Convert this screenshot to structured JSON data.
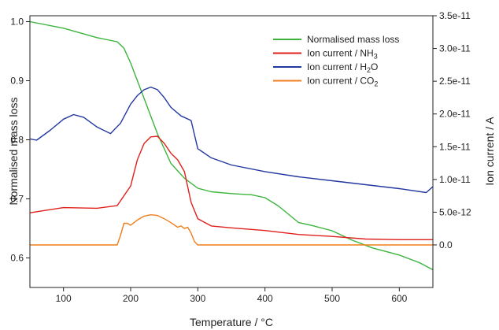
{
  "chart_data": {
    "type": "line",
    "xlabel": "Temperature / °C",
    "ylabel_left": "Normalised mass loss",
    "ylabel_right": "Ion current / A",
    "xlim": [
      50,
      650
    ],
    "ylim_left": [
      0.55,
      1.01
    ],
    "ylim_right": [
      -6.5e-12,
      3.5e-11
    ],
    "x_ticks": [
      100,
      200,
      300,
      400,
      500,
      600
    ],
    "y_ticks_left": [
      0.6,
      0.7,
      0.8,
      0.9,
      1.0
    ],
    "y_ticks_right": [
      {
        "value": 0,
        "label": "0.0"
      },
      {
        "value": 5e-12,
        "label": "5.0e-12"
      },
      {
        "value": 1e-11,
        "label": "1.0e-11"
      },
      {
        "value": 1.5e-11,
        "label": "1.5e-11"
      },
      {
        "value": 2e-11,
        "label": "2.0e-11"
      },
      {
        "value": 2.5e-11,
        "label": "2.5e-11"
      },
      {
        "value": 3e-11,
        "label": "3.0e-11"
      },
      {
        "value": 3.5e-11,
        "label": "3.5e-11"
      }
    ],
    "legend_position": "top-right",
    "series": [
      {
        "name": "Normalised mass loss",
        "color": "#3cb43c",
        "axis": "left",
        "x": [
          50,
          100,
          150,
          180,
          190,
          200,
          220,
          240,
          260,
          280,
          300,
          320,
          350,
          380,
          400,
          420,
          450,
          470,
          500,
          530,
          560,
          600,
          630,
          650
        ],
        "y": [
          1.0,
          0.989,
          0.973,
          0.966,
          0.955,
          0.93,
          0.87,
          0.81,
          0.76,
          0.735,
          0.718,
          0.712,
          0.709,
          0.707,
          0.702,
          0.688,
          0.66,
          0.655,
          0.646,
          0.63,
          0.617,
          0.605,
          0.592,
          0.58
        ]
      },
      {
        "name": "Ion current / NH3",
        "color": "#e0201c",
        "axis": "right",
        "x": [
          50,
          100,
          150,
          180,
          200,
          210,
          220,
          230,
          240,
          250,
          260,
          270,
          280,
          290,
          300,
          320,
          350,
          400,
          450,
          500,
          550,
          600,
          650
        ],
        "y": [
          4.9e-12,
          5.7e-12,
          5.6e-12,
          6e-12,
          9e-12,
          1.3e-11,
          1.55e-11,
          1.65e-11,
          1.66e-11,
          1.55e-11,
          1.4e-11,
          1.3e-11,
          1.12e-11,
          6.5e-12,
          4e-12,
          2.9e-12,
          2.6e-12,
          2.2e-12,
          1.6e-12,
          1.3e-12,
          9e-13,
          8e-13,
          8e-13
        ]
      },
      {
        "name": "Ion current / H2O",
        "color": "#2238a0",
        "axis": "right",
        "x": [
          50,
          60,
          80,
          100,
          115,
          130,
          150,
          170,
          185,
          200,
          210,
          220,
          230,
          240,
          250,
          260,
          275,
          290,
          300,
          320,
          350,
          400,
          450,
          500,
          550,
          600,
          640,
          650
        ],
        "y": [
          1.62e-11,
          1.6e-11,
          1.75e-11,
          1.92e-11,
          1.99e-11,
          1.95e-11,
          1.8e-11,
          1.7e-11,
          1.86e-11,
          2.15e-11,
          2.28e-11,
          2.37e-11,
          2.41e-11,
          2.37e-11,
          2.25e-11,
          2.1e-11,
          1.97e-11,
          1.9e-11,
          1.47e-11,
          1.33e-11,
          1.22e-11,
          1.12e-11,
          1.04e-11,
          9.8e-12,
          9.2e-12,
          8.6e-12,
          8e-12,
          8.9e-12
        ]
      },
      {
        "name": "Ion current / CO2",
        "color": "#f07e1c",
        "axis": "right",
        "x": [
          50,
          180,
          185,
          190,
          195,
          200,
          210,
          220,
          230,
          240,
          250,
          260,
          270,
          275,
          280,
          285,
          290,
          295,
          300,
          650
        ],
        "y": [
          0,
          0,
          1.5e-12,
          3.3e-12,
          3.3e-12,
          3e-12,
          3.8e-12,
          4.4e-12,
          4.6e-12,
          4.5e-12,
          4e-12,
          3.4e-12,
          2.7e-12,
          2.9e-12,
          2.5e-12,
          2.7e-12,
          1.8e-12,
          5e-13,
          0,
          0
        ]
      }
    ]
  },
  "legend": [
    {
      "base": "Normalised mass loss",
      "sub": "",
      "color": "#3cb43c"
    },
    {
      "base": "Ion current / NH",
      "sub": "3",
      "color": "#e0201c"
    },
    {
      "base": "Ion current / H",
      "sub": "2",
      "tail": "O",
      "color": "#2238a0"
    },
    {
      "base": "Ion current / CO",
      "sub": "2",
      "color": "#f07e1c"
    }
  ]
}
